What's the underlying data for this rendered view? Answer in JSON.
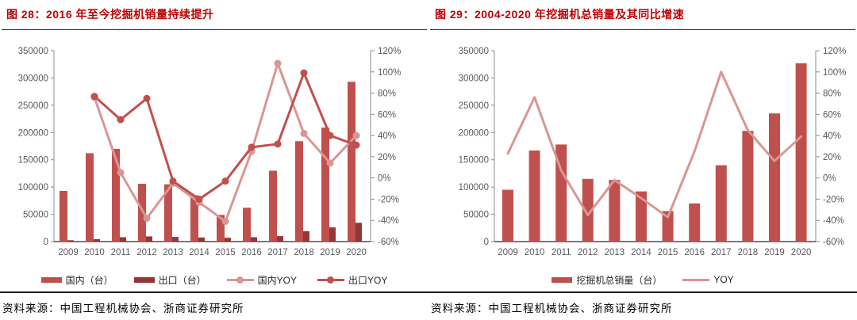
{
  "source_note": "资料来源：中国工程机械协会、浙商证券研究所",
  "palette": {
    "title_red": "#c00000",
    "bar_red": "#C0504D",
    "bar_dark_red": "#943634",
    "line_light_pink": "#D99694",
    "axis_text_gray": "#595959",
    "axis_line_gray": "#8c8c8c",
    "x_axis_dark": "#4d4d4d"
  },
  "chart_data": [
    {
      "type": "bar+line",
      "title": "图 28：2016 年至今挖掘机销量持续提升",
      "categories": [
        "2009",
        "2010",
        "2011",
        "2012",
        "2013",
        "2014",
        "2015",
        "2016",
        "2017",
        "2018",
        "2019",
        "2020"
      ],
      "left_axis": {
        "min": 0,
        "max": 350000,
        "step": 50000,
        "tick_labels": [
          "0",
          "50000",
          "100000",
          "150000",
          "200000",
          "250000",
          "300000",
          "350000"
        ]
      },
      "right_axis": {
        "min": -60,
        "max": 120,
        "step": 20,
        "format": "percent",
        "tick_labels": [
          "-60%",
          "-40%",
          "-20%",
          "0%",
          "20%",
          "40%",
          "60%",
          "80%",
          "100%",
          "120%"
        ]
      },
      "grid": false,
      "legend_position": "bottom",
      "series": [
        {
          "key": "domestic",
          "name": "国内（台）",
          "type": "bar",
          "axis": "left",
          "color": "#C0504D",
          "values": [
            93000,
            162000,
            170000,
            106000,
            105000,
            85000,
            49000,
            62000,
            130000,
            184000,
            209000,
            293000
          ]
        },
        {
          "key": "export",
          "name": "出口（台）",
          "type": "bar",
          "axis": "left",
          "color": "#943634",
          "values": [
            2500,
            4500,
            8000,
            9500,
            8500,
            7500,
            7000,
            8000,
            10000,
            19000,
            26000,
            34500
          ]
        },
        {
          "key": "domestic-yoy",
          "name": "国内YOY",
          "type": "line",
          "axis": "right",
          "color": "#D99694",
          "marker": true,
          "values": [
            null,
            76,
            5,
            -38,
            -5,
            -23,
            -41,
            25,
            108,
            42,
            14,
            40
          ]
        },
        {
          "key": "export-yoy",
          "name": "出口YOY",
          "type": "line",
          "axis": "right",
          "color": "#C0504D",
          "marker": true,
          "values": [
            null,
            77,
            55,
            75,
            -3,
            -20,
            -3,
            29,
            32,
            99,
            40,
            31
          ]
        }
      ]
    },
    {
      "type": "bar+line",
      "title": "图 29：2004-2020 年挖掘机总销量及其同比增速",
      "categories": [
        "2009",
        "2010",
        "2011",
        "2012",
        "2013",
        "2014",
        "2015",
        "2016",
        "2017",
        "2018",
        "2019",
        "2020"
      ],
      "left_axis": {
        "min": 0,
        "max": 350000,
        "step": 50000,
        "tick_labels": [
          "0",
          "50000",
          "100000",
          "150000",
          "200000",
          "250000",
          "300000",
          "350000"
        ]
      },
      "right_axis": {
        "min": -60,
        "max": 120,
        "step": 20,
        "format": "percent",
        "tick_labels": [
          "-60%",
          "-40%",
          "-20%",
          "0%",
          "20%",
          "40%",
          "60%",
          "80%",
          "100%",
          "120%"
        ]
      },
      "grid": false,
      "legend_position": "bottom",
      "series": [
        {
          "key": "total",
          "name": "挖掘机总销量（台）",
          "type": "bar",
          "axis": "left",
          "color": "#C0504D",
          "values": [
            95000,
            167000,
            178000,
            115000,
            113000,
            92000,
            56000,
            70000,
            140000,
            203000,
            235000,
            327000
          ]
        },
        {
          "key": "yoy",
          "name": "YOY",
          "type": "line",
          "axis": "right",
          "color": "#D99694",
          "marker": false,
          "values": [
            23,
            76,
            7,
            -35,
            -2,
            -19,
            -37,
            25,
            100,
            45,
            16,
            39
          ]
        }
      ]
    }
  ]
}
